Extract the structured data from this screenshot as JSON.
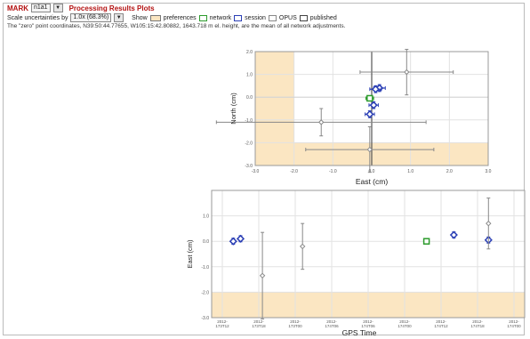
{
  "header": {
    "mark_label": "MARK",
    "mark_value": "n1a1",
    "title": "Processing Results Plots",
    "scale_label": "Scale uncertainties by",
    "scale_value": "1.0x (68.3%)",
    "show_label": "Show",
    "legend": [
      {
        "icon": "preferences-swatch",
        "label": "preferences",
        "color": "#fbe6c2"
      },
      {
        "icon": "network-swatch",
        "label": "network",
        "color": "#2c9b2c"
      },
      {
        "icon": "session-swatch",
        "label": "session",
        "color": "#2b3fb5"
      },
      {
        "icon": "opus-swatch",
        "label": "OPUS",
        "color": "#888888"
      },
      {
        "icon": "published-swatch",
        "label": "published",
        "color": "#444444"
      }
    ],
    "note": "The \"zero\" point coordinates, N39:50:44.77655, W105:15:42.80882, 1643.718 m el. height, are the mean of all network adjustments."
  },
  "chart_data": [
    {
      "type": "scatter",
      "xlabel": "East (cm)",
      "ylabel": "North (cm)",
      "xlim": [
        -3.0,
        3.0
      ],
      "ylim": [
        -3.0,
        2.0
      ],
      "xticks": [
        "-3.0",
        "-2.0",
        "-1.0",
        "0.0",
        "1.0",
        "2.0",
        "3.0"
      ],
      "yticks": [
        "2.0",
        "1.0",
        "0.0",
        "-1.0",
        "-2.0",
        "-3.0"
      ],
      "preference_region": {
        "x_max": -2.0,
        "y_max": -2.0
      },
      "series": [
        {
          "kind": "opus",
          "color": "#888888",
          "points": [
            {
              "x": 0.9,
              "y": 1.1,
              "ex": 1.2,
              "ey": 1.0
            },
            {
              "x": -1.3,
              "y": -1.1,
              "ex": 2.7,
              "ey": 0.6
            },
            {
              "x": -0.05,
              "y": -2.3,
              "ex": 1.65,
              "ey": 1.0
            }
          ]
        },
        {
          "kind": "session",
          "color": "#2b3fb5",
          "points": [
            {
              "x": 0.2,
              "y": 0.4,
              "ex": 0.15,
              "ey": 0.15
            },
            {
              "x": 0.1,
              "y": 0.35,
              "ex": 0.15,
              "ey": 0.15
            },
            {
              "x": 0.05,
              "y": -0.35,
              "ex": 0.12,
              "ey": 0.15
            },
            {
              "x": -0.05,
              "y": -0.75,
              "ex": 0.12,
              "ey": 0.15
            }
          ]
        },
        {
          "kind": "network",
          "color": "#2c9b2c",
          "points": [
            {
              "x": -0.05,
              "y": -0.05,
              "ex": 0.1,
              "ey": 0.1
            }
          ]
        }
      ]
    },
    {
      "type": "scatter",
      "xlabel": "GPS Time",
      "ylabel": "East (cm)",
      "ylim": [
        -3.0,
        2.0
      ],
      "yticks": [
        "1.0",
        "0.0",
        "-1.0",
        "-2.0",
        "-3.0"
      ],
      "xticks": [
        [
          "2012-",
          "173T12"
        ],
        [
          "2012-",
          "173T18"
        ],
        [
          "2012-",
          "173T00"
        ],
        [
          "2012-",
          "174T06"
        ],
        [
          "2012-",
          "174T06"
        ],
        [
          "2012-",
          "174T00"
        ],
        [
          "2012-",
          "174T12"
        ],
        [
          "2012-",
          "174T18"
        ],
        [
          "2012-",
          "174T00"
        ]
      ],
      "preference_region": {
        "y_max": -2.0
      },
      "series": [
        {
          "kind": "session",
          "color": "#2b3fb5",
          "points": [
            {
              "t": 0.3,
              "y": 0.0,
              "e": 0.12
            },
            {
              "t": 0.5,
              "y": 0.1,
              "e": 0.12
            },
            {
              "t": 6.35,
              "y": 0.25,
              "e": 0.12
            },
            {
              "t": 7.3,
              "y": 0.05,
              "e": 0.12
            }
          ]
        },
        {
          "kind": "network",
          "color": "#2c9b2c",
          "points": [
            {
              "t": 5.6,
              "y": 0.0,
              "e": 0.1
            }
          ]
        },
        {
          "kind": "opus",
          "color": "#888888",
          "points": [
            {
              "t": 1.1,
              "y": -1.35,
              "e": 1.7
            },
            {
              "t": 2.2,
              "y": -0.2,
              "e": 0.9
            },
            {
              "t": 7.3,
              "y": 0.7,
              "e": 1.0
            },
            {
              "t": 8.6,
              "y": 0.25,
              "e": 0.8
            }
          ]
        }
      ]
    }
  ]
}
